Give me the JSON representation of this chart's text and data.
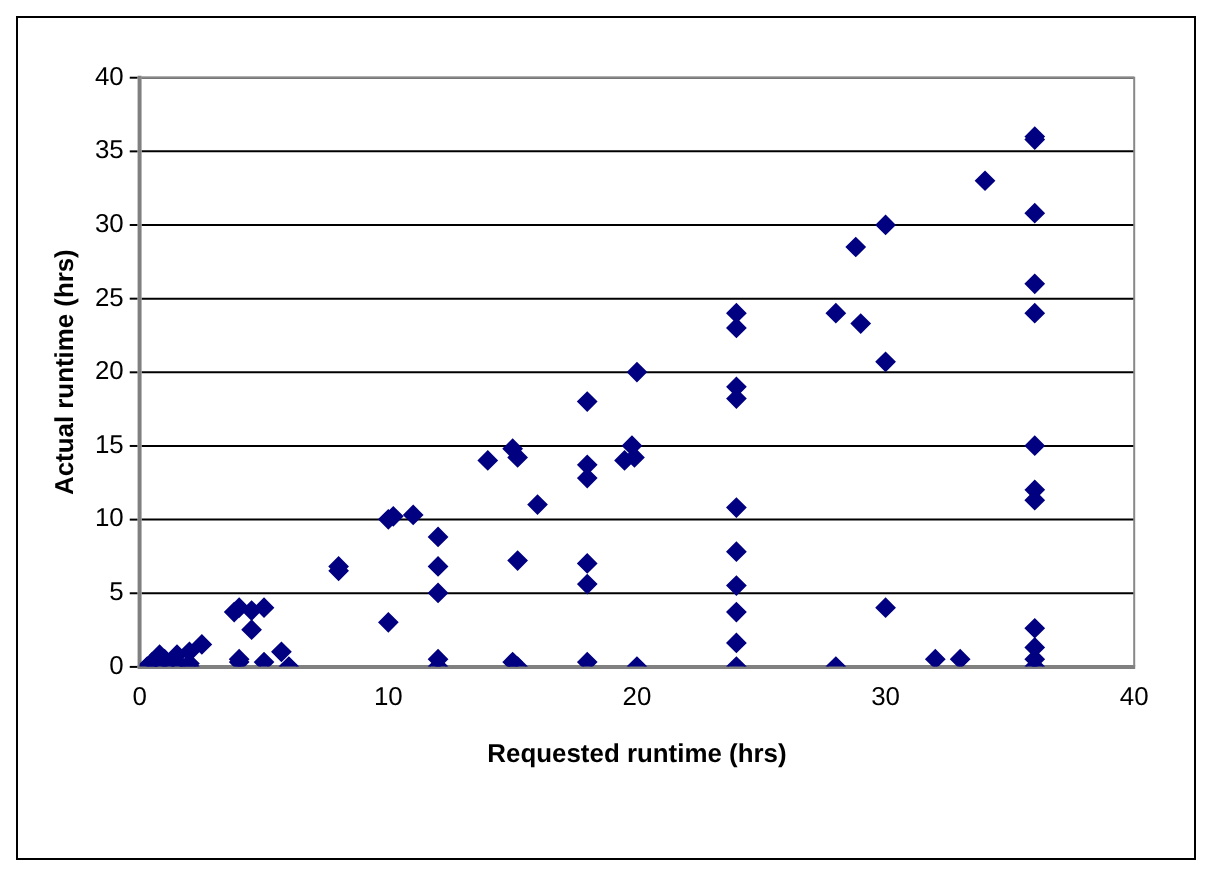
{
  "chart_data": {
    "type": "scatter",
    "xlabel": "Requested runtime (hrs)",
    "ylabel": "Actual runtime (hrs)",
    "x": [
      0.3,
      0.5,
      0.8,
      1,
      1,
      1.5,
      1.5,
      2,
      2,
      2.5,
      2,
      3.8,
      4,
      4,
      4,
      4.5,
      4.5,
      5,
      5,
      5.7,
      6,
      8,
      8,
      10,
      10,
      10.2,
      11,
      12,
      12,
      12,
      12,
      12,
      14,
      15,
      15.2,
      15.2,
      15,
      15.2,
      16,
      18,
      18,
      18,
      18,
      18,
      18,
      19.5,
      19.8,
      19.9,
      20,
      20,
      24,
      24,
      24,
      24,
      24,
      24,
      24,
      24,
      24,
      24,
      28,
      28,
      28.8,
      29,
      30,
      30,
      30,
      32,
      33,
      34,
      36,
      36,
      36,
      36,
      36,
      36,
      36,
      36,
      36,
      36,
      36,
      36
    ],
    "series": [
      {
        "color": "#000080",
        "values": [
          0,
          0.3,
          0.8,
          0.5,
          0,
          0.3,
          0.8,
          0.2,
          1,
          1.5,
          0,
          3.7,
          4,
          0.3,
          0.5,
          2.5,
          3.8,
          4,
          0.3,
          1,
          0,
          6.8,
          6.5,
          3,
          10,
          10.2,
          10.3,
          8.8,
          6.8,
          5,
          0.5,
          0,
          14,
          14.8,
          14.2,
          7.2,
          0.3,
          0,
          11,
          18,
          13.7,
          12.8,
          7,
          5.6,
          0.3,
          14,
          15,
          14.2,
          20,
          0,
          24,
          23,
          19,
          18.2,
          10.8,
          7.8,
          5.5,
          3.7,
          1.6,
          0,
          24,
          0,
          28.5,
          23.3,
          30,
          20.7,
          4,
          0.5,
          0.5,
          33,
          36,
          35.8,
          30.8,
          26,
          24,
          15,
          12,
          11.3,
          2.6,
          1.3,
          0.5,
          0
        ]
      }
    ],
    "xlim": [
      0,
      40
    ],
    "xticks": [
      0,
      10,
      20,
      30,
      40
    ],
    "ylim": [
      0,
      40
    ],
    "yticks": [
      0,
      5,
      10,
      15,
      20,
      25,
      30,
      35,
      40
    ],
    "grid": "y",
    "marker": "diamond",
    "legend": false
  }
}
